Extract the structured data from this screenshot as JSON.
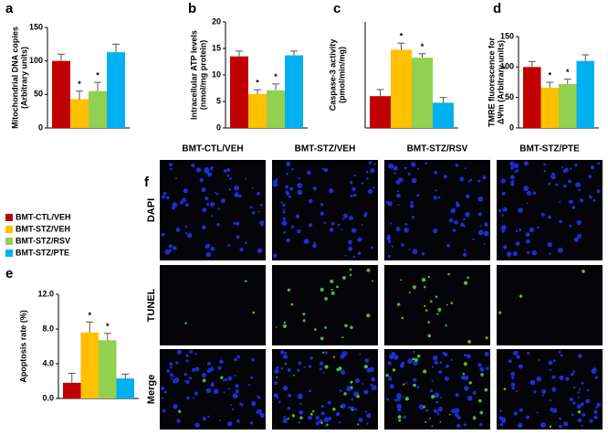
{
  "chart_data": [
    {
      "type": "bar",
      "panel": "a",
      "ylabel": [
        "Mitochondrial DNA copies",
        "(Arbitrary units)"
      ],
      "values": [
        100,
        43,
        55,
        113
      ],
      "errors": [
        10,
        12,
        13,
        12
      ],
      "markers": [
        null,
        "*",
        "*",
        null
      ],
      "colors": [
        "#c00000",
        "#ffc000",
        "#92d050",
        "#00b0f0"
      ],
      "ylim": [
        0,
        150
      ],
      "yticks": [
        0,
        50,
        100,
        150
      ]
    },
    {
      "type": "bar",
      "panel": "b",
      "ylabel": [
        "Intracellular ATP levels",
        "(nmol/mg protein)"
      ],
      "values": [
        13.5,
        6.4,
        7.1,
        13.7
      ],
      "errors": [
        1,
        0.8,
        1.2,
        0.8
      ],
      "markers": [
        null,
        "*",
        "*",
        null
      ],
      "colors": [
        "#c00000",
        "#ffc000",
        "#92d050",
        "#00b0f0"
      ],
      "ylim": [
        0,
        20
      ],
      "yticks": [
        0,
        5,
        10,
        15,
        20
      ]
    },
    {
      "type": "bar",
      "panel": "c",
      "ylabel": [
        "Caspase-3 activity",
        "(pmol/min/mg)"
      ],
      "values": [
        12,
        29.5,
        26.5,
        9.5
      ],
      "errors": [
        2.5,
        2.5,
        1.5,
        2
      ],
      "markers": [
        null,
        "*",
        "*",
        null
      ],
      "colors": [
        "#c00000",
        "#ffc000",
        "#92d050",
        "#00b0f0"
      ],
      "ylim": [
        0,
        40
      ]
    },
    {
      "type": "bar",
      "panel": "d",
      "ylabel": [
        "TMRE fluorescence for",
        "ΔΨm (Arbitrary units)"
      ],
      "values": [
        100,
        66,
        72,
        110
      ],
      "errors": [
        9,
        9,
        8,
        10
      ],
      "markers": [
        null,
        "*",
        "*",
        null
      ],
      "colors": [
        "#c00000",
        "#ffc000",
        "#92d050",
        "#00b0f0"
      ],
      "ylim": [
        0,
        150
      ],
      "yticks": [
        0,
        50,
        100,
        150
      ]
    },
    {
      "type": "bar",
      "panel": "e",
      "ylabel": [
        "Apoptosis rate (%)"
      ],
      "values": [
        1.8,
        7.6,
        6.7,
        2.3
      ],
      "errors": [
        1.1,
        1.2,
        0.8,
        0.5
      ],
      "markers": [
        null,
        "*",
        "*",
        null
      ],
      "colors": [
        "#c00000",
        "#ffc000",
        "#92d050",
        "#00b0f0"
      ],
      "ylim": [
        0,
        12
      ],
      "yticks": [
        {
          "value": 0,
          "label": "0.0"
        },
        {
          "value": 4,
          "label": "4.0"
        },
        {
          "value": 8,
          "label": "8.0"
        },
        {
          "value": 12,
          "label": "12.0"
        }
      ]
    }
  ],
  "legend": {
    "labels": [
      "BMT-CTL/VEH",
      "BMT-STZ/VEH",
      "BMT-STZ/RSV",
      "BMT-STZ/PTE"
    ],
    "colors": [
      "#c00000",
      "#ffc000",
      "#92d050",
      "#00b0f0"
    ]
  },
  "image_panel": {
    "panel": "f",
    "columns": [
      "BMT-CTL/VEH",
      "BMT-STZ/VEH",
      "BMT-STZ/RSV",
      "BMT-STZ/PTE"
    ],
    "rows": [
      "DAPI",
      "TUNEL",
      "Merge"
    ]
  }
}
